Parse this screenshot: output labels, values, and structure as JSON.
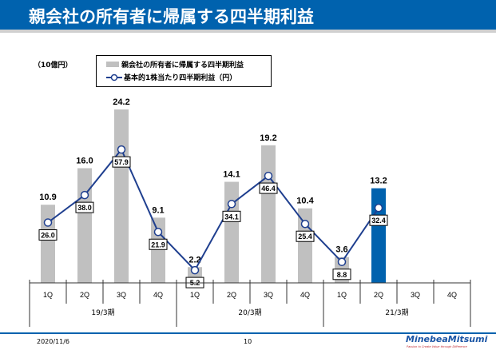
{
  "header": {
    "title": "親会社の所有者に帰属する四半期利益"
  },
  "footer": {
    "date": "2020/11/6",
    "page": "10",
    "logo": "MinebeaMitsumi",
    "tagline": "Passion to Create Value through Difference"
  },
  "chart_data": {
    "type": "bar+line",
    "unit_label": "（10億円）",
    "legend_position": "top",
    "categories": [
      "1Q",
      "2Q",
      "3Q",
      "4Q",
      "1Q",
      "2Q",
      "3Q",
      "4Q",
      "1Q",
      "2Q",
      "3Q",
      "4Q"
    ],
    "groups": [
      {
        "label": "19/3期",
        "span": 4
      },
      {
        "label": "20/3期",
        "span": 4
      },
      {
        "label": "21/3期",
        "span": 4
      }
    ],
    "series": [
      {
        "name": "親会社の所有者に帰属する四半期利益",
        "type": "bar",
        "color": "#c0c0c0",
        "highlight_color": "#0062ae",
        "highlight_index": 9,
        "values": [
          10.9,
          16.0,
          24.2,
          9.1,
          2.2,
          14.1,
          19.2,
          10.4,
          3.6,
          13.2,
          null,
          null
        ],
        "labels": [
          "10.9",
          "16.0",
          "24.2",
          "9.1",
          "2.2",
          "14.1",
          "19.2",
          "10.4",
          "3.6",
          "13.2",
          "",
          ""
        ]
      },
      {
        "name": "基本的1株当たり四半期利益（円）",
        "type": "line",
        "color": "#1f3f8f",
        "values": [
          26.0,
          38.0,
          57.9,
          21.9,
          5.2,
          34.1,
          46.4,
          25.4,
          8.8,
          32.4,
          null,
          null
        ],
        "labels": [
          "26.0",
          "38.0",
          "57.9",
          "21.9",
          "5.2",
          "34.1",
          "46.4",
          "25.4",
          "8.8",
          "32.4",
          "",
          ""
        ]
      }
    ],
    "grid": false
  }
}
